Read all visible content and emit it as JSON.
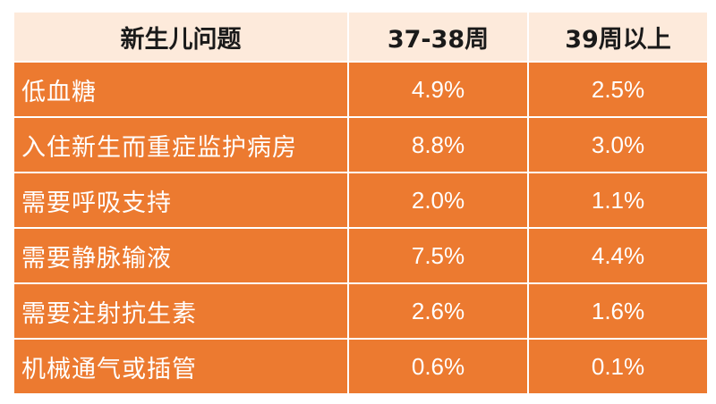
{
  "table": {
    "headers": [
      "新生儿问题",
      "37-38周",
      "39周以上"
    ],
    "rows": [
      [
        "低血糖",
        "4.9%",
        "2.5%"
      ],
      [
        "入住新生而重症监护病房",
        "8.8%",
        "3.0%"
      ],
      [
        "需要呼吸支持",
        "2.0%",
        "1.1%"
      ],
      [
        "需要静脉输液",
        "7.5%",
        "4.4%"
      ],
      [
        "需要注射抗生素",
        "2.6%",
        "1.6%"
      ],
      [
        "机械通气或插管",
        "0.6%",
        "0.1%"
      ]
    ]
  },
  "colors": {
    "header_bg": "#fdeadb",
    "cell_bg": "#ec7a30",
    "border": "#ffffff"
  }
}
